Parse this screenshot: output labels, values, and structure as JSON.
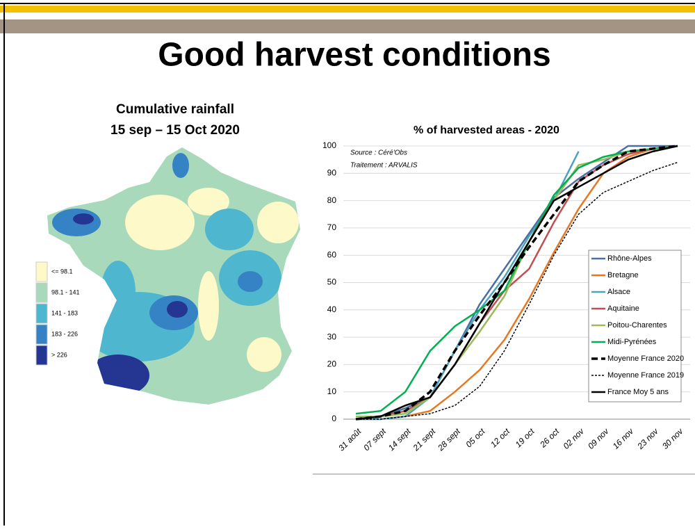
{
  "title": "Good harvest conditions",
  "map": {
    "title_lines": [
      "Cumulative rainfall",
      "15 sep – 15 Oct 2020"
    ],
    "legend": [
      {
        "label": "<= 98.1",
        "color": "#fdf9c8"
      },
      {
        "label": "98.1 - 141",
        "color": "#a9d9bb"
      },
      {
        "label": "141 - 183",
        "color": "#4fb6cf"
      },
      {
        "label": "183 - 226",
        "color": "#3582c4"
      },
      {
        "label": "> 226",
        "color": "#243592"
      }
    ]
  },
  "chart_data": {
    "type": "line",
    "title": "% of harvested areas - 2020",
    "annotations": [
      "Source : Céré'Obs",
      "Traitement : ARVALIS"
    ],
    "categories": [
      "31 août",
      "07 sept",
      "14 sept",
      "21 sept",
      "28 sept",
      "05 oct",
      "12 oct",
      "19 oct",
      "26 oct",
      "02 nov",
      "09 nov",
      "16 nov",
      "23 nov",
      "30 nov"
    ],
    "ylim": [
      0,
      100
    ],
    "yticks": [
      0,
      10,
      20,
      30,
      40,
      50,
      60,
      70,
      80,
      90,
      100
    ],
    "grid": true,
    "legend": "right",
    "series": [
      {
        "name": "Rhône-Alpes",
        "color": "#4a6fa5",
        "style": "solid",
        "values": [
          0,
          1,
          4,
          8,
          25,
          42,
          55,
          68,
          81,
          88,
          94,
          100,
          100,
          100
        ]
      },
      {
        "name": "Bretagne",
        "color": "#e87722",
        "style": "solid",
        "values": [
          0,
          0,
          1,
          3,
          10,
          18,
          29,
          44,
          61,
          77,
          90,
          96,
          99,
          100
        ]
      },
      {
        "name": "Alsace",
        "color": "#4ba3bd",
        "style": "solid",
        "values": [
          0,
          0,
          1,
          8,
          25,
          40,
          52,
          67,
          80,
          98,
          null,
          null,
          null,
          null
        ]
      },
      {
        "name": "Aquitaine",
        "color": "#c0504d",
        "style": "solid",
        "values": [
          0,
          1,
          3,
          8,
          20,
          35,
          47,
          55,
          72,
          87,
          93,
          97,
          99,
          100
        ]
      },
      {
        "name": "Poitou-Charentes",
        "color": "#9bbb59",
        "style": "solid",
        "values": [
          1,
          1,
          2,
          8,
          20,
          32,
          45,
          65,
          80,
          93,
          95,
          98,
          99,
          100
        ]
      },
      {
        "name": "Midi-Pyrénées",
        "color": "#00b050",
        "style": "solid",
        "values": [
          2,
          3,
          10,
          25,
          34,
          40,
          47,
          65,
          82,
          92,
          96,
          98,
          99,
          100
        ]
      },
      {
        "name": "Moyenne France 2020",
        "color": "#000000",
        "style": "dashed",
        "values": [
          0,
          1,
          3,
          10,
          25,
          38,
          50,
          63,
          75,
          87,
          93,
          98,
          99,
          100
        ]
      },
      {
        "name": "Moyenne France 2019",
        "color": "#000000",
        "style": "dotted",
        "values": [
          0,
          0,
          1,
          2,
          5,
          12,
          25,
          42,
          60,
          75,
          83,
          87,
          91,
          94
        ]
      },
      {
        "name": "France Moy 5 ans",
        "color": "#000000",
        "style": "solid",
        "values": [
          0,
          1,
          5,
          8,
          20,
          35,
          50,
          65,
          80,
          85,
          90,
          95,
          98,
          100
        ]
      }
    ]
  }
}
